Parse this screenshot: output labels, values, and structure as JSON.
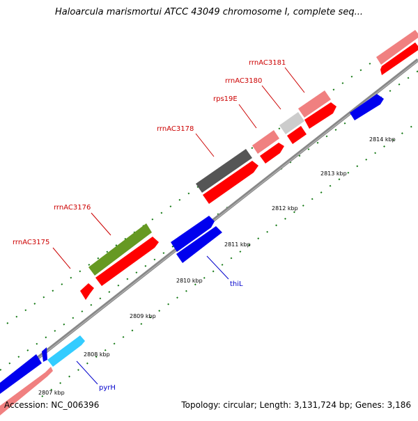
{
  "title": "Haloarcula marismortui ATCC 43049 chromosome I, complete seq...",
  "footer": {
    "accession": "Accession: NC_006396",
    "topology": "Topology: circular; Length: 3,131,724 bp; Genes: 3,186"
  },
  "ticks": [
    "2807 kbp",
    "2808 kbp",
    "2809 kbp",
    "2810 kbp",
    "2811 kbp",
    "2812 kbp",
    "2813 kbp",
    "2814 kbp"
  ],
  "gene_labels": {
    "rrnAC3175": "rrnAC3175",
    "rrnAC3176": "rrnAC3176",
    "rrnAC3178": "rrnAC3178",
    "rps19E": "rps19E",
    "rrnAC3180": "rrnAC3180",
    "rrnAC3181": "rrnAC3181",
    "thiL": "thiL",
    "pyrH": "pyrH"
  },
  "colors": {
    "red_label": "#cc0000",
    "blue_label": "#0000cc",
    "backbone": "#888888",
    "tick_green": "#117711",
    "red": "#ff0000",
    "pink": "#f08080",
    "blue": "#0000ff",
    "cyan": "#33ccff",
    "olive": "#669922",
    "dark_gray": "#555555",
    "light_gray": "#cccccc"
  }
}
